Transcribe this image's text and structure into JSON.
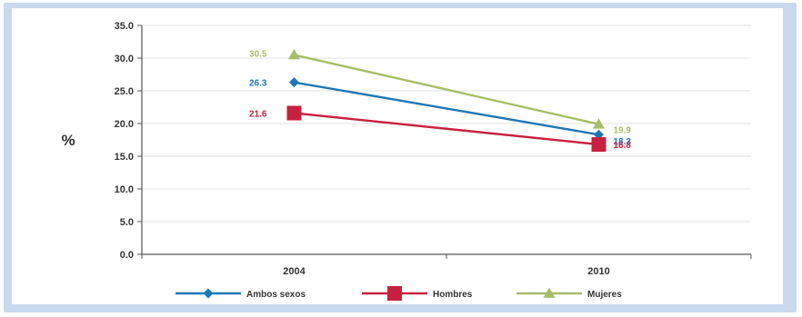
{
  "chart_data": {
    "type": "line",
    "title": "",
    "xlabel": "",
    "ylabel": "%",
    "categories": [
      "2004",
      "2010"
    ],
    "ylim": [
      0,
      35
    ],
    "yticks": [
      "0.0",
      "5.0",
      "10.0",
      "15.0",
      "20.0",
      "25.0",
      "30.0",
      "35.0"
    ],
    "grid": true,
    "legend_position": "bottom",
    "series": [
      {
        "name": "Ambos sexos",
        "values": [
          26.3,
          18.3
        ],
        "labels": [
          "26.3",
          "18.3"
        ],
        "color": "#1f77b4",
        "marker": "diamond"
      },
      {
        "name": "Hombres",
        "values": [
          21.6,
          16.8
        ],
        "labels": [
          "21.6",
          "16.8"
        ],
        "color": "#c8203f",
        "marker": "square"
      },
      {
        "name": "Mujeres",
        "values": [
          30.5,
          19.9
        ],
        "labels": [
          "30.5",
          "19.9"
        ],
        "color": "#a8bd6a",
        "marker": "triangle"
      }
    ]
  }
}
